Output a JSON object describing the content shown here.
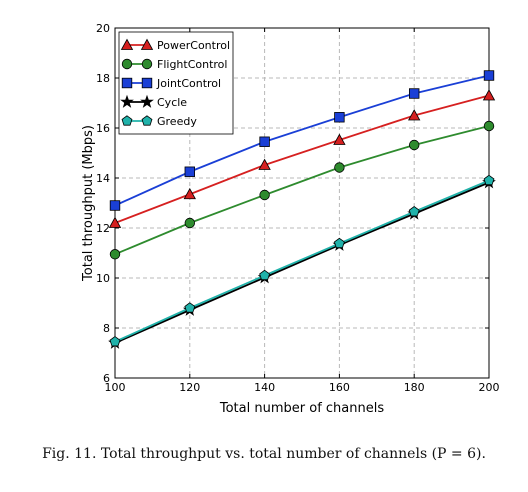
{
  "chart_data": {
    "type": "line",
    "xlabel": "Total number of channels",
    "ylabel": "Total throughput (Mbps)",
    "xlim": [
      100,
      200
    ],
    "ylim": [
      6,
      20
    ],
    "xticks": [
      100,
      120,
      140,
      160,
      180,
      200
    ],
    "yticks": [
      6,
      8,
      10,
      12,
      14,
      16,
      18,
      20
    ],
    "grid": true,
    "legend_position": "top-left",
    "x": [
      100,
      120,
      140,
      160,
      180,
      200
    ],
    "series": [
      {
        "name": "PowerControl",
        "color": "#d62020",
        "marker": "triangle",
        "values": [
          12.2,
          13.35,
          14.52,
          15.52,
          16.5,
          17.3
        ]
      },
      {
        "name": "FlightControl",
        "color": "#2e8b2e",
        "marker": "circle",
        "values": [
          10.95,
          12.2,
          13.32,
          14.42,
          15.32,
          16.08
        ]
      },
      {
        "name": "JointControl",
        "color": "#1a3fd6",
        "marker": "square",
        "values": [
          12.9,
          14.25,
          15.45,
          16.43,
          17.38,
          18.1
        ]
      },
      {
        "name": "Cycle",
        "color": "#000000",
        "marker": "star",
        "values": [
          7.4,
          8.72,
          10.02,
          11.32,
          12.57,
          13.82
        ]
      },
      {
        "name": "Greedy",
        "color": "#20b2aa",
        "marker": "pentagon",
        "values": [
          7.45,
          8.8,
          10.1,
          11.38,
          12.65,
          13.9
        ]
      }
    ]
  },
  "caption": "Fig. 11.   Total throughput vs. total number of channels (P = 6)."
}
